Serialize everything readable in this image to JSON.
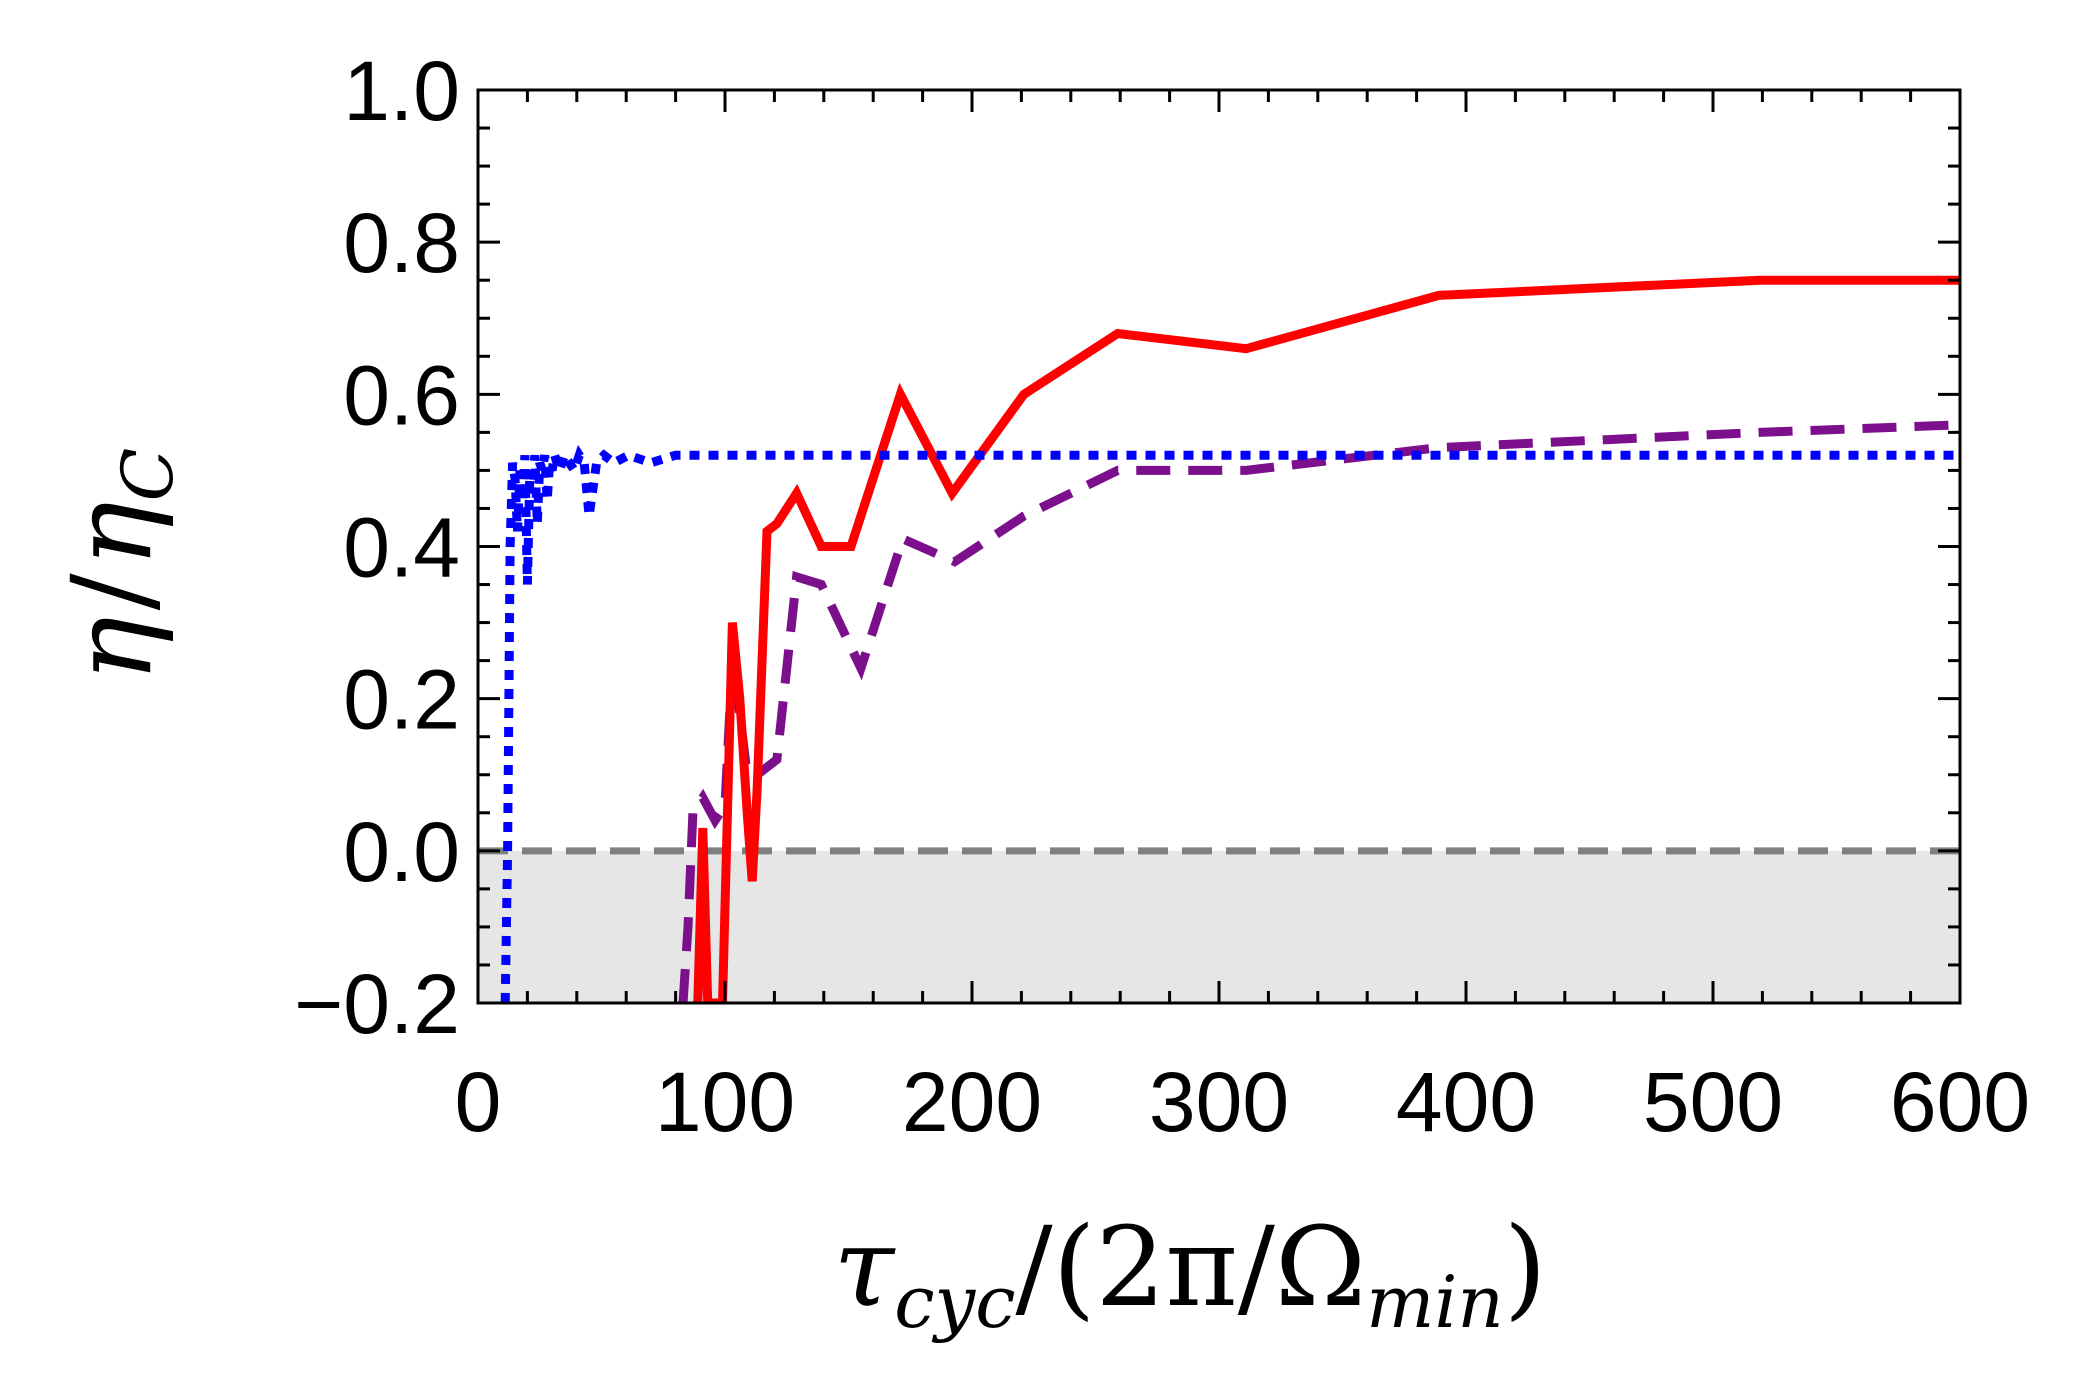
{
  "chart_data": {
    "type": "line",
    "title": "",
    "xlabel": {
      "main": "τ",
      "main_sub": "cyc",
      "rest": "/(2π/Ω",
      "rest_sub": "min",
      "close": ")"
    },
    "ylabel": {
      "num": "η",
      "slash": "/",
      "den": "η",
      "den_sub": "C"
    },
    "xlim": [
      0,
      600
    ],
    "ylim": [
      -0.2,
      1.0
    ],
    "x_ticks": [
      0,
      100,
      200,
      300,
      400,
      500,
      600
    ],
    "x_tick_labels": [
      "0",
      "100",
      "200",
      "300",
      "400",
      "500",
      "600"
    ],
    "y_ticks": [
      -0.2,
      0.0,
      0.2,
      0.4,
      0.6,
      0.8,
      1.0
    ],
    "y_tick_labels": [
      "−0.2",
      "0.0",
      "0.2",
      "0.4",
      "0.6",
      "0.8",
      "1.0"
    ],
    "grid": false,
    "negative_region": {
      "from": -0.2,
      "to": 0.0,
      "color": "#e6e6e6"
    },
    "reference_line": {
      "y": 0.0,
      "color": "#808080",
      "style": "dashed"
    },
    "series": [
      {
        "name": "red-solid",
        "color": "#ff0000",
        "style": "solid",
        "x": [
          89,
          91,
          93,
          96,
          99,
          103,
          106,
          109,
          111,
          113,
          117,
          121,
          129,
          139,
          151,
          171,
          192,
          221,
          259,
          311,
          389,
          519,
          600
        ],
        "y": [
          -0.2,
          0.03,
          -0.2,
          -0.2,
          -0.2,
          0.3,
          0.2,
          0.05,
          -0.04,
          0.08,
          0.42,
          0.43,
          0.47,
          0.4,
          0.4,
          0.6,
          0.47,
          0.6,
          0.68,
          0.66,
          0.73,
          0.75,
          0.75
        ]
      },
      {
        "name": "purple-dashed",
        "color": "#7b0f8c",
        "style": "dashed",
        "x": [
          83,
          85,
          87,
          91,
          96,
          100,
          103,
          106,
          109,
          113,
          121,
          129,
          139,
          155,
          172,
          193,
          221,
          259,
          311,
          389,
          519,
          600
        ],
        "y": [
          -0.2,
          -0.1,
          0.05,
          0.07,
          0.04,
          0.06,
          0.25,
          0.18,
          0.1,
          0.1,
          0.12,
          0.36,
          0.35,
          0.24,
          0.41,
          0.38,
          0.44,
          0.5,
          0.5,
          0.53,
          0.55,
          0.56
        ]
      },
      {
        "name": "blue-dotted",
        "color": "#0000ff",
        "style": "dotted",
        "x": [
          11,
          12,
          12.5,
          13,
          14,
          15,
          16,
          17,
          18,
          19,
          20,
          21,
          22,
          23,
          24,
          25,
          26,
          27,
          28,
          29,
          30,
          31,
          32,
          33,
          35,
          37,
          39,
          41,
          43,
          45,
          48,
          51,
          55,
          61,
          70,
          80,
          100,
          200,
          300,
          400,
          500,
          600
        ],
        "y": [
          -0.2,
          0.0,
          0.2,
          0.4,
          0.51,
          0.49,
          0.42,
          0.5,
          0.46,
          0.52,
          0.35,
          0.5,
          0.47,
          0.52,
          0.43,
          0.51,
          0.5,
          0.52,
          0.46,
          0.51,
          0.5,
          0.52,
          0.51,
          0.5,
          0.52,
          0.51,
          0.5,
          0.52,
          0.51,
          0.44,
          0.51,
          0.52,
          0.51,
          0.52,
          0.51,
          0.52,
          0.52,
          0.52,
          0.52,
          0.52,
          0.52,
          0.52
        ]
      }
    ]
  }
}
